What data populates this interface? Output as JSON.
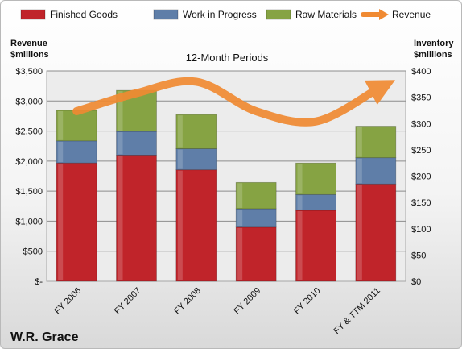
{
  "chart_data": {
    "type": "bar",
    "stacked": true,
    "title": "12-Month Periods",
    "footer_label": "W.R. Grace",
    "categories": [
      "FY 2006",
      "FY 2007",
      "FY 2008",
      "FY 2009",
      "FY 2010",
      "FY & TTM 2011"
    ],
    "series": [
      {
        "name": "Finished Goods",
        "axis": "right",
        "color": "#c0242a",
        "values": [
          225,
          240,
          212,
          103,
          135,
          185
        ]
      },
      {
        "name": "Work in Progress",
        "axis": "right",
        "color": "#5f7ea8",
        "values": [
          42,
          45,
          40,
          35,
          30,
          50
        ]
      },
      {
        "name": "Raw Materials",
        "axis": "right",
        "color": "#86a343",
        "values": [
          58,
          78,
          65,
          50,
          60,
          60
        ]
      },
      {
        "name": "Revenue",
        "type": "line",
        "axis": "left",
        "color": "#f08a32",
        "values": [
          2830,
          3130,
          3320,
          2830,
          2660,
          3180
        ]
      }
    ],
    "left_axis": {
      "label": "Revenue\n$millions",
      "min": 0,
      "max": 3500,
      "ticks": [
        "$-",
        "$500",
        "$1,000",
        "$1,500",
        "$2,000",
        "$2,500",
        "$3,000",
        "$3,500"
      ]
    },
    "right_axis": {
      "label": "Inventory\n$millions",
      "min": 0,
      "max": 400,
      "ticks": [
        "$0",
        "$50",
        "$100",
        "$150",
        "$200",
        "$250",
        "$300",
        "$350",
        "$400"
      ]
    },
    "legend_position": "top",
    "grid": true
  }
}
